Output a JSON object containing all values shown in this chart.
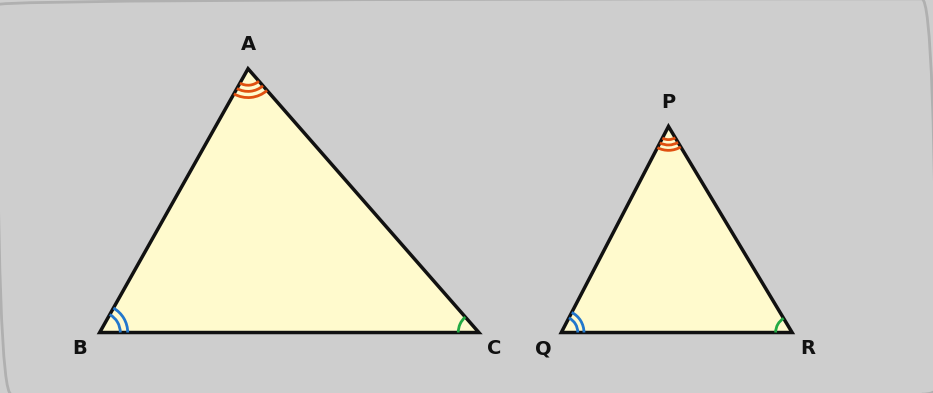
{
  "bg_color": "#cecece",
  "triangle_fill": "#fffacd",
  "triangle_edge": "#111111",
  "triangle1": {
    "A": [
      2.0,
      3.2
    ],
    "B": [
      0.2,
      0.0
    ],
    "C": [
      4.8,
      0.0
    ]
  },
  "triangle2": {
    "P": [
      7.1,
      2.5
    ],
    "Q": [
      5.8,
      0.0
    ],
    "R": [
      8.6,
      0.0
    ]
  },
  "labels1": {
    "A": "A",
    "B": "B",
    "C": "C"
  },
  "labels2": {
    "P": "P",
    "Q": "Q",
    "R": "R"
  },
  "arc_orange": "#e05010",
  "arc_blue": "#2277cc",
  "arc_green": "#22aa44",
  "line_width": 2.5,
  "xlim": [
    -0.5,
    9.8
  ],
  "ylim": [
    -0.7,
    4.0
  ]
}
